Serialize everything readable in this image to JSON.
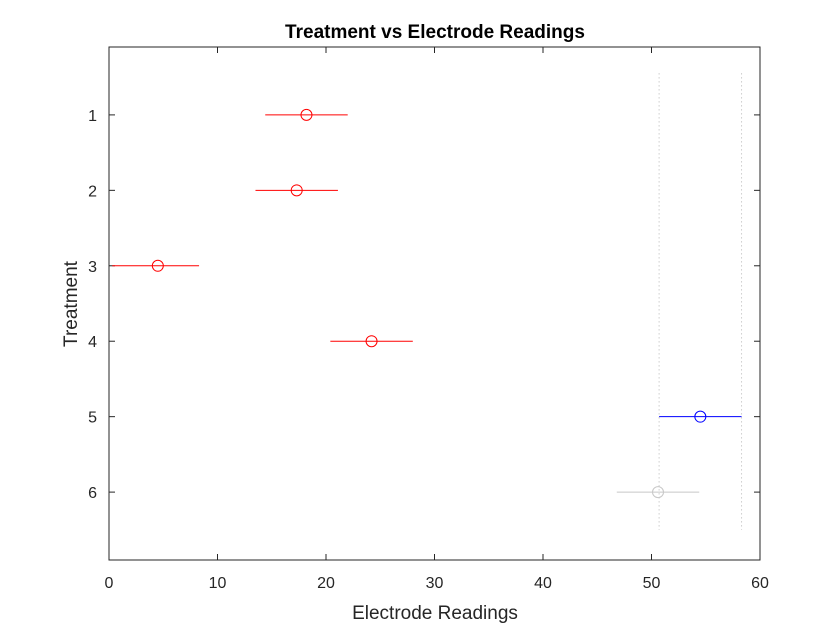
{
  "chart_data": {
    "type": "scatter",
    "subtype": "multiple-comparison-interval-plot",
    "title": "Treatment vs Electrode Readings",
    "xlabel": "Electrode Readings",
    "ylabel": "Treatment",
    "xlim": [
      0,
      60
    ],
    "ylim": [
      0.1,
      6.9
    ],
    "y_reversed": true,
    "xticks": [
      0,
      10,
      20,
      30,
      40,
      50,
      60
    ],
    "yticks": [
      1,
      2,
      3,
      4,
      5,
      6
    ],
    "grid": false,
    "reference_lines_x": [
      50.7,
      58.3
    ],
    "colors": {
      "significant": "#ff0000",
      "selected": "#0000ff",
      "not_significant": "#c8c8c8",
      "reference": "#b4b4b4",
      "axes": "#262626"
    },
    "groups": [
      {
        "y": 1,
        "mean": 18.2,
        "lower": 14.4,
        "upper": 22.0,
        "status": "significant"
      },
      {
        "y": 2,
        "mean": 17.3,
        "lower": 13.5,
        "upper": 21.1,
        "status": "significant"
      },
      {
        "y": 3,
        "mean": 4.5,
        "lower": 0.3,
        "upper": 8.3,
        "status": "significant"
      },
      {
        "y": 4,
        "mean": 24.2,
        "lower": 20.4,
        "upper": 28.0,
        "status": "significant"
      },
      {
        "y": 5,
        "mean": 54.5,
        "lower": 50.7,
        "upper": 58.3,
        "status": "selected"
      },
      {
        "y": 6,
        "mean": 50.6,
        "lower": 46.8,
        "upper": 54.4,
        "status": "not_significant"
      }
    ]
  }
}
